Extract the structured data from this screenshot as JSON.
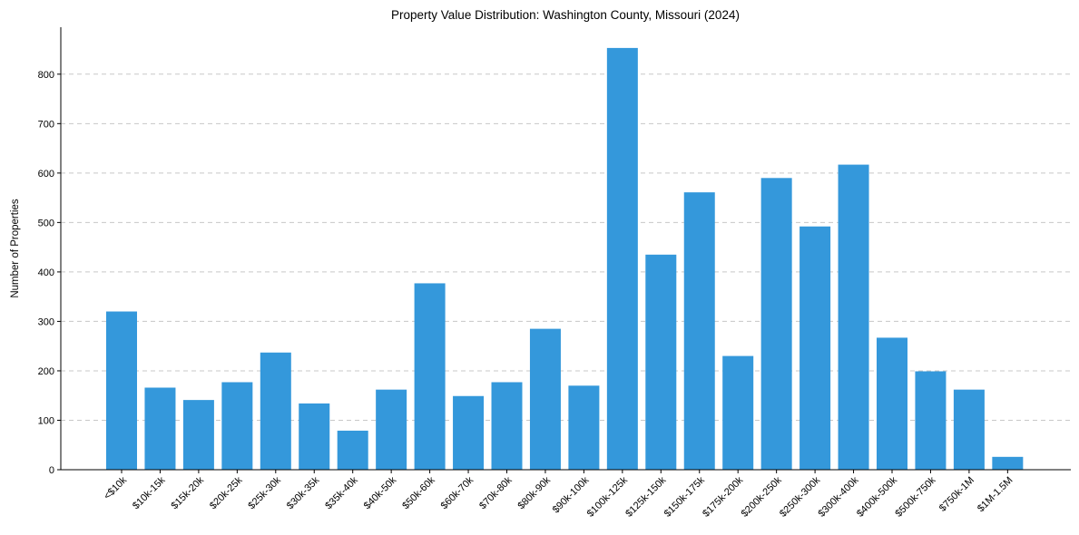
{
  "chart_data": {
    "type": "bar",
    "title": "Property Value Distribution: Washington County, Missouri (2024)",
    "xlabel": "",
    "ylabel": "Number of Properties",
    "ylim": [
      0,
      895
    ],
    "yticks": [
      0,
      100,
      200,
      300,
      400,
      500,
      600,
      700,
      800
    ],
    "grid": "y",
    "bar_color": "#3498db",
    "categories": [
      "<$10k",
      "$10k-15k",
      "$15k-20k",
      "$20k-25k",
      "$25k-30k",
      "$30k-35k",
      "$35k-40k",
      "$40k-50k",
      "$50k-60k",
      "$60k-70k",
      "$70k-80k",
      "$80k-90k",
      "$90k-100k",
      "$100k-125k",
      "$125k-150k",
      "$150k-175k",
      "$175k-200k",
      "$200k-250k",
      "$250k-300k",
      "$300k-400k",
      "$400k-500k",
      "$500k-750k",
      "$750k-1M",
      "$1M-1.5M"
    ],
    "values": [
      320,
      166,
      141,
      177,
      237,
      134,
      79,
      162,
      377,
      149,
      177,
      285,
      170,
      853,
      435,
      561,
      230,
      590,
      492,
      617,
      267,
      199,
      162,
      26
    ]
  }
}
